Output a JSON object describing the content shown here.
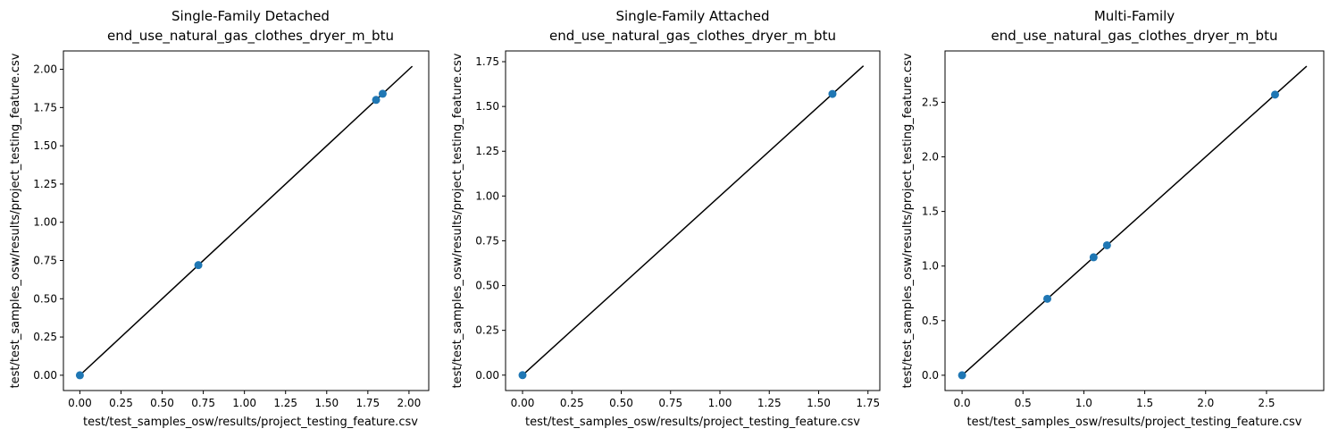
{
  "chart_data": [
    {
      "type": "scatter",
      "title": "Single-Family Detached",
      "subtitle": "end_use_natural_gas_clothes_dryer_m_btu",
      "xlabel": "test/test_samples_osw/results/project_testing_feature.csv",
      "ylabel": "test/test_samples_osw/results/project_testing_feature.csv",
      "xlim": [
        -0.1,
        2.12
      ],
      "ylim": [
        -0.1,
        2.12
      ],
      "xticks": [
        "0.00",
        "0.25",
        "0.50",
        "0.75",
        "1.00",
        "1.25",
        "1.50",
        "1.75",
        "2.00"
      ],
      "yticks": [
        "0.00",
        "0.25",
        "0.50",
        "0.75",
        "1.00",
        "1.25",
        "1.50",
        "1.75",
        "2.00"
      ],
      "tick_values": [
        0,
        0.25,
        0.5,
        0.75,
        1.0,
        1.25,
        1.5,
        1.75,
        2.0
      ],
      "identity_line": [
        0,
        2.02
      ],
      "points": [
        {
          "x": 0.0,
          "y": 0.0
        },
        {
          "x": 0.72,
          "y": 0.72
        },
        {
          "x": 1.8,
          "y": 1.8
        },
        {
          "x": 1.84,
          "y": 1.84
        }
      ],
      "grid": false
    },
    {
      "type": "scatter",
      "title": "Single-Family Attached",
      "subtitle": "end_use_natural_gas_clothes_dryer_m_btu",
      "xlabel": "test/test_samples_osw/results/project_testing_feature.csv",
      "ylabel": "test/test_samples_osw/results/project_testing_feature.csv",
      "xlim": [
        -0.086,
        1.81
      ],
      "ylim": [
        -0.086,
        1.81
      ],
      "xticks": [
        "0.00",
        "0.25",
        "0.50",
        "0.75",
        "1.00",
        "1.25",
        "1.50",
        "1.75"
      ],
      "yticks": [
        "0.00",
        "0.25",
        "0.50",
        "0.75",
        "1.00",
        "1.25",
        "1.50",
        "1.75"
      ],
      "tick_values": [
        0,
        0.25,
        0.5,
        0.75,
        1.0,
        1.25,
        1.5,
        1.75
      ],
      "identity_line": [
        0,
        1.727
      ],
      "points": [
        {
          "x": 0.0,
          "y": 0.0
        },
        {
          "x": 1.57,
          "y": 1.57
        }
      ],
      "grid": false
    },
    {
      "type": "scatter",
      "title": "Multi-Family",
      "subtitle": "end_use_natural_gas_clothes_dryer_m_btu",
      "xlabel": "test/test_samples_osw/results/project_testing_feature.csv",
      "ylabel": "test/test_samples_osw/results/project_testing_feature.csv",
      "xlim": [
        -0.14,
        2.97
      ],
      "ylim": [
        -0.14,
        2.97
      ],
      "xticks": [
        "0.0",
        "0.5",
        "1.0",
        "1.5",
        "2.0",
        "2.5"
      ],
      "yticks": [
        "0.0",
        "0.5",
        "1.0",
        "1.5",
        "2.0",
        "2.5"
      ],
      "tick_values": [
        0,
        0.5,
        1.0,
        1.5,
        2.0,
        2.5
      ],
      "identity_line": [
        0,
        2.83
      ],
      "points": [
        {
          "x": 0.0,
          "y": 0.0
        },
        {
          "x": 0.7,
          "y": 0.7
        },
        {
          "x": 1.08,
          "y": 1.08
        },
        {
          "x": 1.19,
          "y": 1.19
        },
        {
          "x": 2.57,
          "y": 2.57
        }
      ],
      "grid": false
    }
  ]
}
